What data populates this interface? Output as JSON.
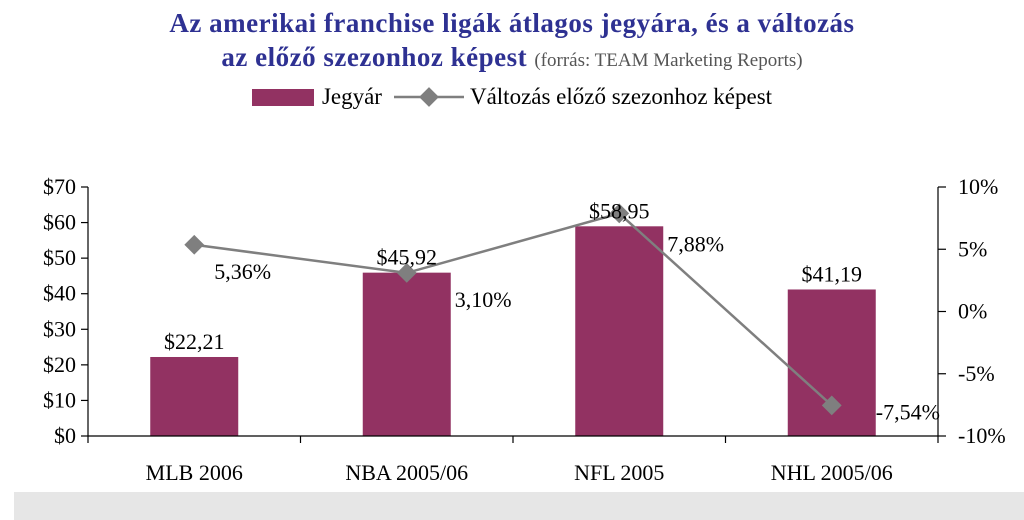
{
  "title": {
    "line1": "Az amerikai franchise ligák átlagos jegyára, és a változás",
    "line2": "az előző szezonhoz képest",
    "source": "(forrás: TEAM Marketing Reports)"
  },
  "legend": {
    "bar_label": "Jegyár",
    "line_label": "Változás előző szezonhoz képest"
  },
  "colors": {
    "bar": "#923262",
    "line": "#7f7f7f",
    "marker": "#7f7f7f",
    "title": "#2e3192"
  },
  "chart_data": {
    "type": "bar",
    "categories": [
      "MLB 2006",
      "NBA 2005/06",
      "NFL 2005",
      "NHL 2005/06"
    ],
    "series": [
      {
        "name": "Jegyár",
        "type": "bar",
        "axis": "left",
        "values": [
          22.21,
          45.92,
          58.95,
          41.19
        ],
        "labels": [
          "$22,21",
          "$45,92",
          "$58,95",
          "$41,19"
        ]
      },
      {
        "name": "Változás előző szezonhoz képest",
        "type": "line",
        "axis": "right",
        "values": [
          5.36,
          3.1,
          7.88,
          -7.54
        ],
        "labels": [
          "5,36%",
          "3,10%",
          "7,88%",
          "-7,54%"
        ]
      }
    ],
    "y_left": {
      "ylim": [
        0,
        70
      ],
      "ticks": [
        0,
        10,
        20,
        30,
        40,
        50,
        60,
        70
      ],
      "tick_labels": [
        "$0",
        "$10",
        "$20",
        "$30",
        "$40",
        "$50",
        "$60",
        "$70"
      ]
    },
    "y_right": {
      "ylim": [
        -10,
        10
      ],
      "ticks": [
        -10,
        -5,
        0,
        5,
        10
      ],
      "tick_labels": [
        "-10%",
        "-5%",
        "0%",
        "5%",
        "10%"
      ]
    },
    "grid": false,
    "legend_position": "top"
  }
}
